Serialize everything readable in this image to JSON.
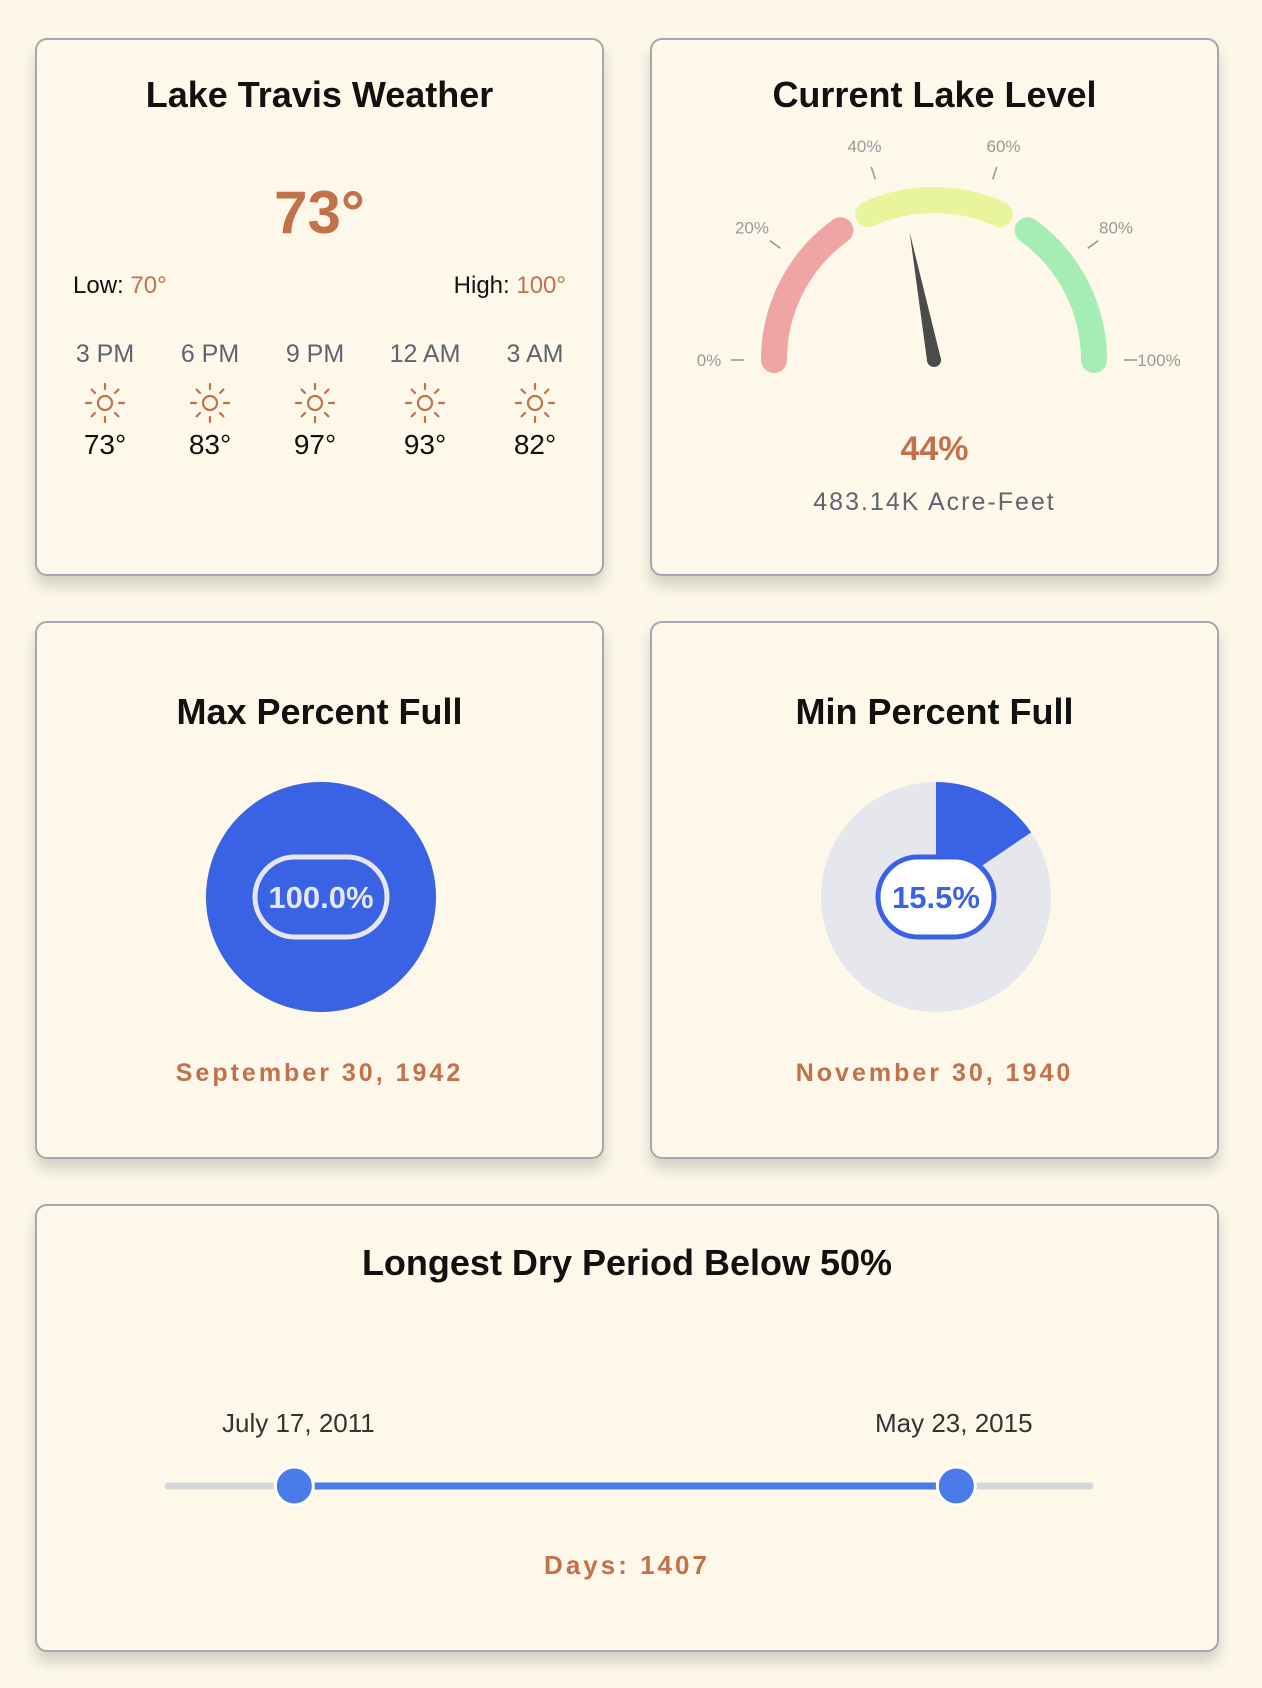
{
  "weather": {
    "title": "Lake Travis Weather",
    "current_temp": "73°",
    "low_label": "Low:",
    "low_value": "70°",
    "high_label": "High:",
    "high_value": "100°",
    "hours": [
      {
        "time": "3 PM",
        "icon": "sun-icon",
        "temp": "73°"
      },
      {
        "time": "6 PM",
        "icon": "sun-icon",
        "temp": "83°"
      },
      {
        "time": "9 PM",
        "icon": "sun-icon",
        "temp": "97°"
      },
      {
        "time": "12 AM",
        "icon": "sun-icon",
        "temp": "93°"
      },
      {
        "time": "3 AM",
        "icon": "sun-icon",
        "temp": "82°"
      }
    ]
  },
  "lake_level": {
    "title": "Current Lake Level",
    "percent_label": "44%",
    "percent": 44,
    "acre_feet": "483.14K Acre-Feet",
    "ticks": [
      "0%",
      "20%",
      "40%",
      "60%",
      "80%",
      "100%"
    ],
    "segment_colors": [
      "#f0a5a5",
      "#e8f59b",
      "#a5edb4"
    ]
  },
  "max_full": {
    "title": "Max Percent Full",
    "value_label": "100.0%",
    "value": 100.0,
    "date": "September 30, 1942"
  },
  "min_full": {
    "title": "Min Percent Full",
    "value_label": "15.5%",
    "value": 15.5,
    "date": "November 30, 1940"
  },
  "dry_period": {
    "title": "Longest Dry Period Below 50%",
    "start_date": "July 17, 2011",
    "end_date": "May 23, 2015",
    "days_label": "Days: 1407",
    "range_start_fraction": 0.137,
    "range_end_fraction": 0.855
  },
  "colors": {
    "accent": "#c2714a",
    "blue": "#3a62e4",
    "slider_blue": "#4a7be8",
    "pie_bg": "#e6e7ec"
  }
}
